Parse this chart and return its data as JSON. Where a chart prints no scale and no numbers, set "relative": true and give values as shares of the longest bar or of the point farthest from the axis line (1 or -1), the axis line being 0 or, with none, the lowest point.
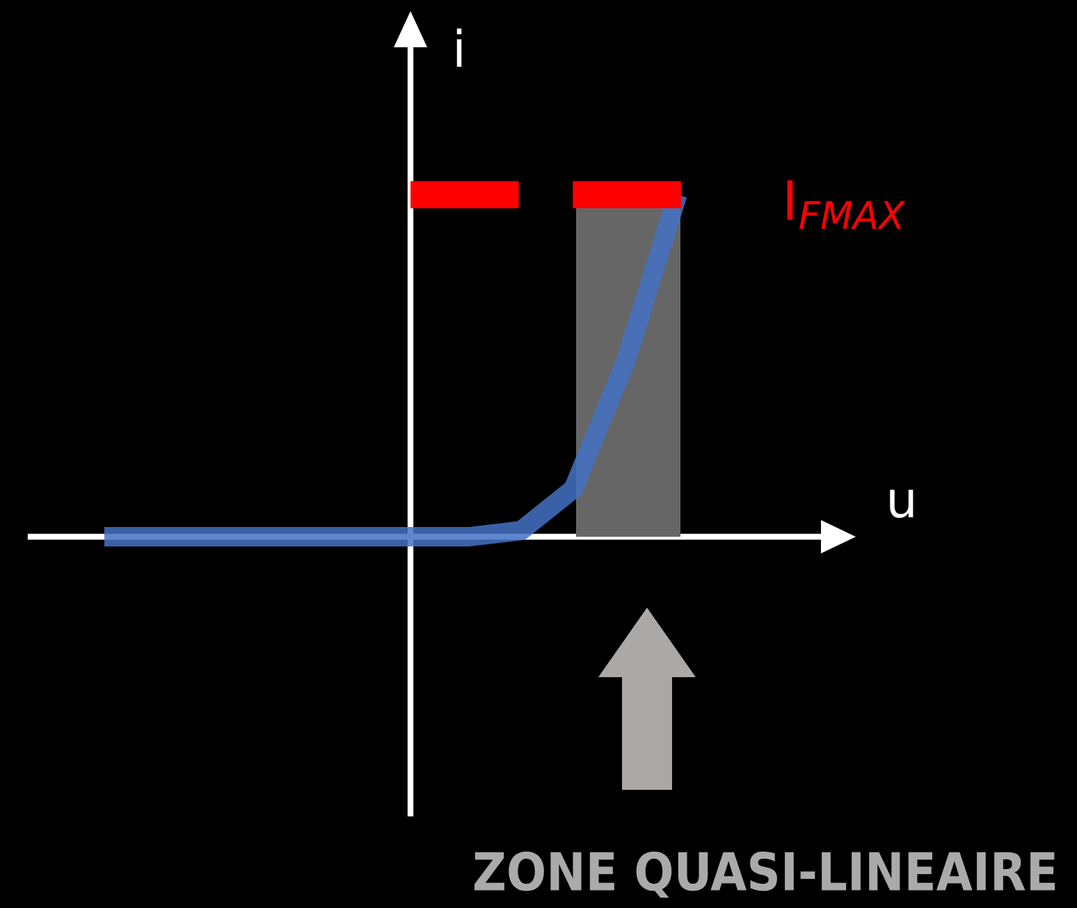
{
  "chart_data": {
    "type": "line",
    "relative": true,
    "xlabel": "u",
    "ylabel": "i",
    "categories": [
      null,
      null,
      null,
      null,
      null,
      null,
      null,
      null,
      null,
      null,
      null,
      null
    ],
    "series": [
      {
        "color": "#4472c4",
        "values": [
          0,
          0,
          0,
          0,
          0,
          0,
          0,
          0,
          0.018,
          0.14,
          0.51,
          1
        ]
      }
    ],
    "ref_lines": [
      {
        "axis": "y",
        "value": 1,
        "label": "I$_{FMAX}$",
        "color": "#ff0000",
        "line_style": "dashed"
      }
    ],
    "annotations": [
      "ZONE QUASI-LINEAIRE"
    ],
    "marker": "none",
    "line_style": "solid"
  }
}
